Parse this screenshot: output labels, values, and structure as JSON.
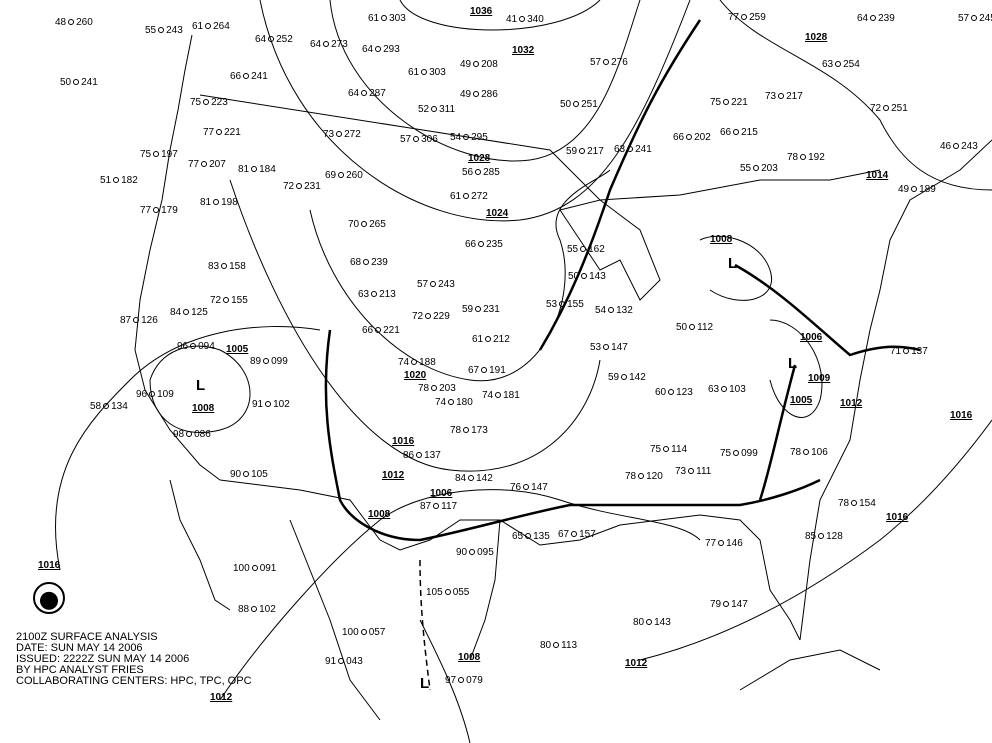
{
  "caption": {
    "line1": "2100Z SURFACE ANALYSIS",
    "line2": "DATE: SUN MAY 14 2006",
    "line3": "ISSUED: 2222Z SUN MAY 14 2006",
    "line4": "BY HPC ANALYST FRIES",
    "line5": "COLLABORATING CENTERS: HPC, TPC, OPC"
  },
  "logo": "NOAA",
  "colors": {
    "isobar": "#000000",
    "front": "#000000",
    "background": "#ffffff"
  },
  "pressure_labels": [
    "1036",
    "1032",
    "1028",
    "1028",
    "1024",
    "1020",
    "1016",
    "1016",
    "1016",
    "1016",
    "1012",
    "1012",
    "1012",
    "1012",
    "1008",
    "1008",
    "1008",
    "1008",
    "1006",
    "1006",
    "1005",
    "1005",
    "1009",
    "1014"
  ],
  "pressure_systems": [
    "L",
    "L",
    "L",
    "L"
  ],
  "stations": [
    {
      "t": "48",
      "p": "260"
    },
    {
      "t": "55",
      "p": "243"
    },
    {
      "t": "61",
      "p": "264"
    },
    {
      "t": "64",
      "p": "252"
    },
    {
      "t": "61",
      "p": "303"
    },
    {
      "t": "50",
      "p": "241"
    },
    {
      "t": "75",
      "p": "223"
    },
    {
      "t": "66",
      "p": "241"
    },
    {
      "t": "64",
      "p": "273"
    },
    {
      "t": "64",
      "p": "293"
    },
    {
      "t": "77",
      "p": "221"
    },
    {
      "t": "73",
      "p": "272"
    },
    {
      "t": "81",
      "p": "184"
    },
    {
      "t": "69",
      "p": "260"
    },
    {
      "t": "75",
      "p": "197"
    },
    {
      "t": "77",
      "p": "207"
    },
    {
      "t": "81",
      "p": "198"
    },
    {
      "t": "77",
      "p": "179"
    },
    {
      "t": "72",
      "p": "231"
    },
    {
      "t": "51",
      "p": "182"
    },
    {
      "t": "83",
      "p": "158"
    },
    {
      "t": "84",
      "p": "125"
    },
    {
      "t": "72",
      "p": "155"
    },
    {
      "t": "87",
      "p": "126"
    },
    {
      "t": "96",
      "p": "094"
    },
    {
      "t": "89",
      "p": "099"
    },
    {
      "t": "96",
      "p": "109"
    },
    {
      "t": "58",
      "p": "134"
    },
    {
      "t": "91",
      "p": "102"
    },
    {
      "t": "98",
      "p": "086"
    },
    {
      "t": "90",
      "p": "105"
    },
    {
      "t": "100",
      "p": "091"
    },
    {
      "t": "88",
      "p": "102"
    },
    {
      "t": "70",
      "p": "265"
    },
    {
      "t": "68",
      "p": "239"
    },
    {
      "t": "63",
      "p": "213"
    },
    {
      "t": "66",
      "p": "221"
    },
    {
      "t": "74",
      "p": "188"
    },
    {
      "t": "78",
      "p": "203"
    },
    {
      "t": "67",
      "p": "191"
    },
    {
      "t": "74",
      "p": "181"
    },
    {
      "t": "74",
      "p": "180"
    },
    {
      "t": "78",
      "p": "173"
    },
    {
      "t": "86",
      "p": "137"
    },
    {
      "t": "84",
      "p": "142"
    },
    {
      "t": "87",
      "p": "117"
    },
    {
      "t": "76",
      "p": "147"
    },
    {
      "t": "65",
      "p": "135"
    },
    {
      "t": "67",
      "p": "157"
    },
    {
      "t": "90",
      "p": "095"
    },
    {
      "t": "105",
      "p": "055"
    },
    {
      "t": "100",
      "p": "057"
    },
    {
      "t": "91",
      "p": "043"
    },
    {
      "t": "97",
      "p": "079"
    },
    {
      "t": "80",
      "p": "113"
    },
    {
      "t": "80",
      "p": "143"
    },
    {
      "t": "77",
      "p": "146"
    },
    {
      "t": "79",
      "p": "147"
    },
    {
      "t": "78",
      "p": "120"
    },
    {
      "t": "73",
      "p": "111"
    },
    {
      "t": "75",
      "p": "114"
    },
    {
      "t": "75",
      "p": "099"
    },
    {
      "t": "78",
      "p": "106"
    },
    {
      "t": "78",
      "p": "154"
    },
    {
      "t": "85",
      "p": "128"
    },
    {
      "t": "60",
      "p": "123"
    },
    {
      "t": "63",
      "p": "103"
    },
    {
      "t": "53",
      "p": "147"
    },
    {
      "t": "59",
      "p": "142"
    },
    {
      "t": "53",
      "p": "155"
    },
    {
      "t": "54",
      "p": "132"
    },
    {
      "t": "50",
      "p": "112"
    },
    {
      "t": "50",
      "p": "143"
    },
    {
      "t": "55",
      "p": "162"
    },
    {
      "t": "59",
      "p": "217"
    },
    {
      "t": "63",
      "p": "241"
    },
    {
      "t": "66",
      "p": "202"
    },
    {
      "t": "66",
      "p": "215"
    },
    {
      "t": "75",
      "p": "221"
    },
    {
      "t": "73",
      "p": "217"
    },
    {
      "t": "78",
      "p": "192"
    },
    {
      "t": "55",
      "p": "203"
    },
    {
      "t": "63",
      "p": "254"
    },
    {
      "t": "64",
      "p": "239"
    },
    {
      "t": "57",
      "p": "245"
    },
    {
      "t": "72",
      "p": "251"
    },
    {
      "t": "46",
      "p": "243"
    },
    {
      "t": "49",
      "p": "189"
    },
    {
      "t": "71",
      "p": "137"
    },
    {
      "t": "50",
      "p": "251"
    },
    {
      "t": "57",
      "p": "276"
    },
    {
      "t": "77",
      "p": "259"
    },
    {
      "t": "41",
      "p": "340"
    },
    {
      "t": "49",
      "p": "208"
    },
    {
      "t": "49",
      "p": "286"
    },
    {
      "t": "52",
      "p": "311"
    },
    {
      "t": "54",
      "p": "295"
    },
    {
      "t": "56",
      "p": "285"
    },
    {
      "t": "61",
      "p": "272"
    },
    {
      "t": "57",
      "p": "306"
    },
    {
      "t": "61",
      "p": "303"
    },
    {
      "t": "64",
      "p": "287"
    },
    {
      "t": "66",
      "p": "235"
    },
    {
      "t": "59",
      "p": "231"
    },
    {
      "t": "61",
      "p": "212"
    },
    {
      "t": "57",
      "p": "243"
    },
    {
      "t": "72",
      "p": "229"
    }
  ]
}
